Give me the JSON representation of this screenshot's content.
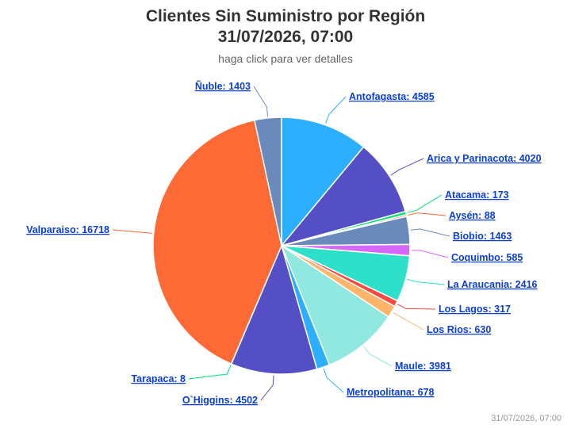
{
  "header": {
    "title_line1": "Clientes Sin Suministro por Región",
    "title_line2": "31/07/2026, 07:00",
    "subtitle": "haga click para ver detalles"
  },
  "footer": {
    "credit": "31/07/2026, 07:00"
  },
  "chart_data": {
    "type": "pie",
    "title": "Clientes Sin Suministro por Región 31/07/2026, 07:00",
    "subtitle": "haga click para ver detalles",
    "slices": [
      {
        "name": "Antofagasta",
        "value": 4585,
        "color": "#2caffe"
      },
      {
        "name": "Arica y Parinacota",
        "value": 4020,
        "color": "#544fc5"
      },
      {
        "name": "Atacama",
        "value": 173,
        "color": "#00e272"
      },
      {
        "name": "Aysén",
        "value": 88,
        "color": "#fe6a35"
      },
      {
        "name": "Biobio",
        "value": 1463,
        "color": "#6b8abc"
      },
      {
        "name": "Coquimbo",
        "value": 585,
        "color": "#d568fb"
      },
      {
        "name": "La Araucania",
        "value": 2416,
        "color": "#2ee0ca"
      },
      {
        "name": "Los Lagos",
        "value": 317,
        "color": "#fa4b42"
      },
      {
        "name": "Los Rios",
        "value": 630,
        "color": "#feb56a"
      },
      {
        "name": "Maule",
        "value": 3981,
        "color": "#91e8e1"
      },
      {
        "name": "Metropolitana",
        "value": 678,
        "color": "#2caffe"
      },
      {
        "name": "O`Higgins",
        "value": 4502,
        "color": "#544fc5"
      },
      {
        "name": "Tarapaca",
        "value": 8,
        "color": "#00e272"
      },
      {
        "name": "Valparaiso",
        "value": 16718,
        "color": "#fe6a35"
      },
      {
        "name": "Ñuble",
        "value": 1403,
        "color": "#6b8abc"
      }
    ]
  }
}
